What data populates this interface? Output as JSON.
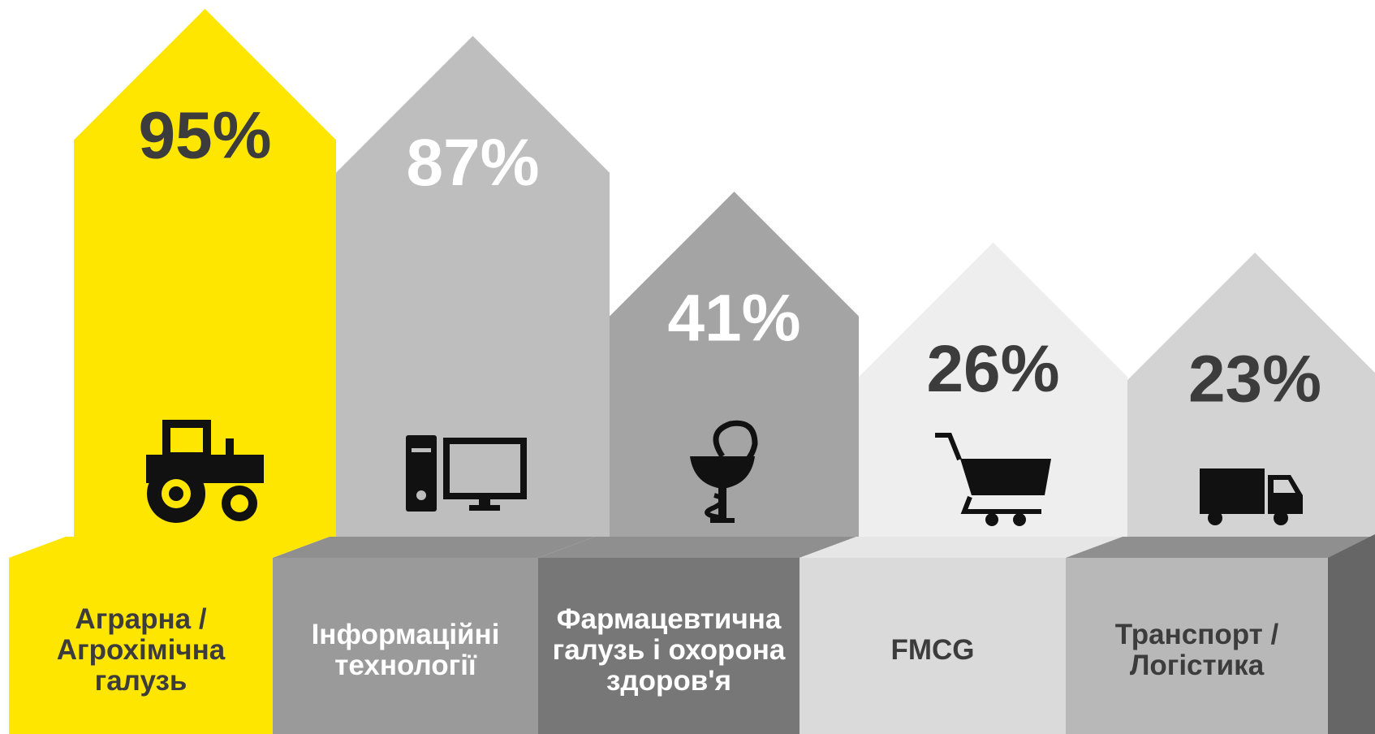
{
  "chart_data": {
    "type": "house",
    "categories": [
      "Аграрна /\nАгрохімічна\nгалузь",
      "Інформаційні\nтехнології",
      "Фармацевтична\nгалузь і охорона\nздоров'я",
      "FMCG",
      "Транспорт /\nЛогістика"
    ],
    "values": [
      95,
      87,
      41,
      26,
      23
    ],
    "value_labels": [
      "95%",
      "87%",
      "41%",
      "26%",
      "23%"
    ],
    "ylim": [
      0,
      100
    ],
    "colors": [
      "#ffe600",
      "#bebebe",
      "#a4a4a4",
      "#eeeeee",
      "#d3d3d3"
    ],
    "value_label_colors": [
      "#3c3c3c",
      "#ffffff",
      "#ffffff",
      "#3c3c3c",
      "#3c3c3c"
    ],
    "base_colors": [
      "#ffe600",
      "#9a9a9a",
      "#777777",
      "#dadada",
      "#b8b8b8"
    ],
    "category_label_colors": [
      "#3c3c3c",
      "#ffffff",
      "#ffffff",
      "#3c3c3c",
      "#3c3c3c"
    ]
  }
}
